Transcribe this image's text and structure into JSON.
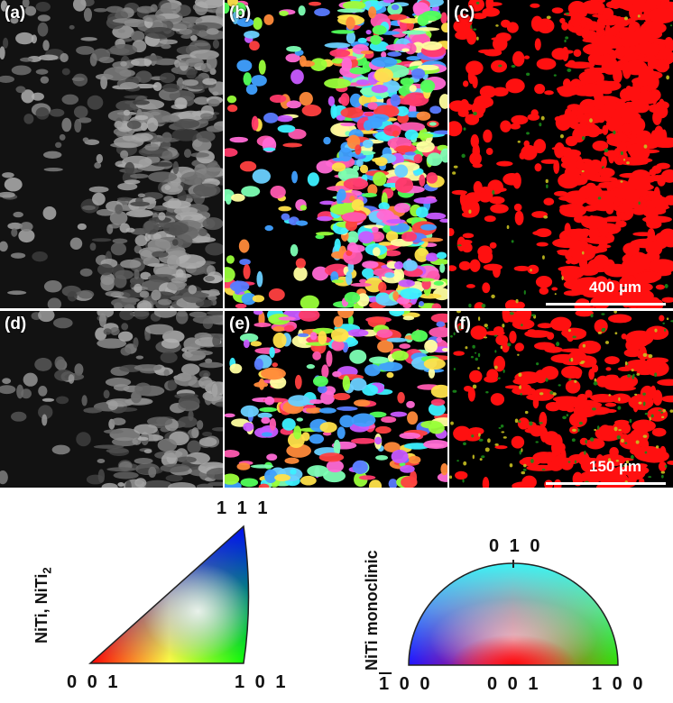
{
  "panels": [
    {
      "label": "(a)",
      "kind": "gray"
    },
    {
      "label": "(b)",
      "kind": "ipf"
    },
    {
      "label": "(c)",
      "kind": "phase"
    },
    {
      "label": "(d)",
      "kind": "gray"
    },
    {
      "label": "(e)",
      "kind": "ipf"
    },
    {
      "label": "(f)",
      "kind": "phase"
    }
  ],
  "scale_top": "400 µm",
  "scale_bottom": "150 µm",
  "legend": {
    "left_phase_label": "NiTi, NiTi",
    "left_phase_subscript": "2",
    "left_corner_top": "1 1 1",
    "left_corner_bl": "0 0 1",
    "left_corner_br": "1 0 1",
    "right_phase_label": "NiTi monoclinic",
    "right_top": "0 1 0",
    "right_bl_bar": "1",
    "right_bl_rest": " 0 0",
    "right_bc": "0 0 1",
    "right_br": "1 0 0"
  },
  "colors": {
    "phase_red": "#ff1010",
    "phase_green": "#1a8a1a",
    "phase_yellow": "#c8c020"
  }
}
